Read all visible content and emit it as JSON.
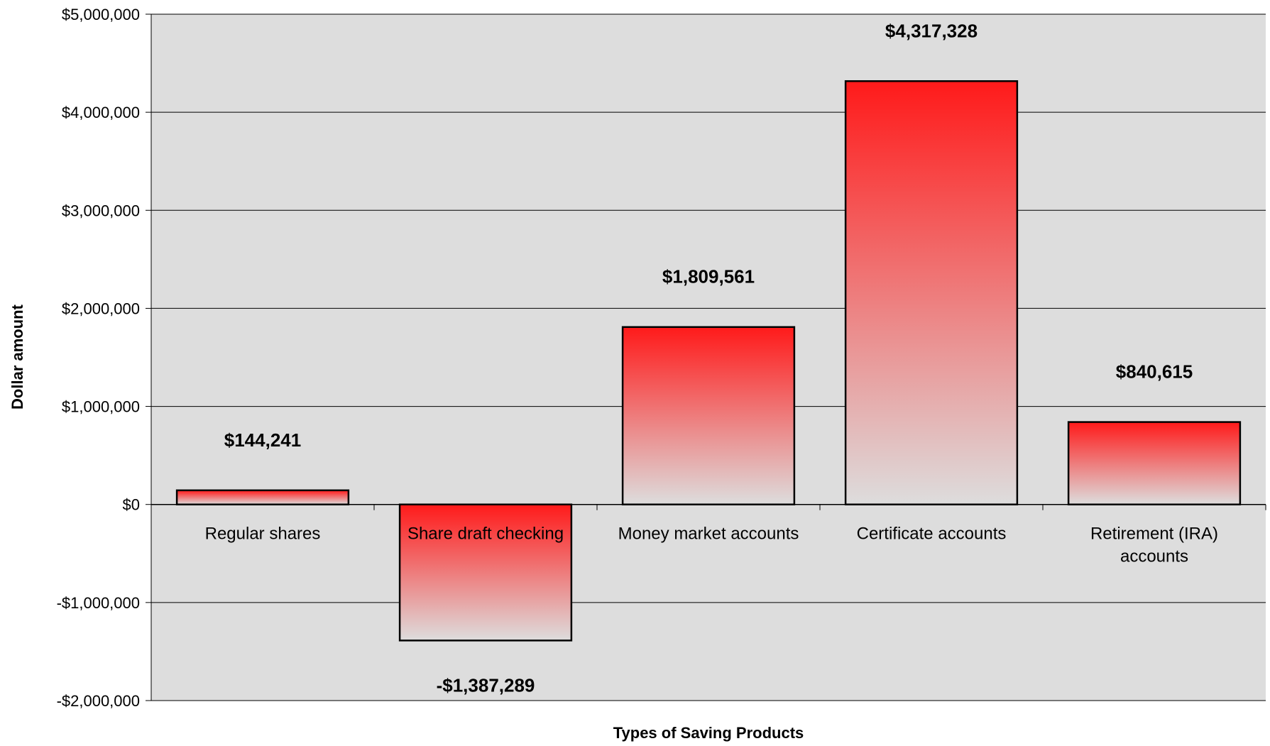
{
  "chart_data": {
    "type": "bar",
    "title": "",
    "xlabel": "Types of Saving Products",
    "ylabel": "Dollar amount",
    "categories": [
      "Regular shares",
      "Share draft checking",
      "Money market accounts",
      "Certificate accounts",
      "Retirement (IRA) accounts"
    ],
    "category_lines": [
      [
        "Regular shares"
      ],
      [
        "Share draft checking"
      ],
      [
        "Money market accounts"
      ],
      [
        "Certificate accounts"
      ],
      [
        "Retirement (IRA)",
        "accounts"
      ]
    ],
    "values": [
      144241,
      -1387289,
      1809561,
      4317328,
      840615
    ],
    "value_labels": [
      "$144,241",
      "-$1,387,289",
      "$1,809,561",
      "$4,317,328",
      "$840,615"
    ],
    "ylim": [
      -2000000,
      5000000
    ],
    "yticks": [
      -2000000,
      -1000000,
      0,
      1000000,
      2000000,
      3000000,
      4000000,
      5000000
    ],
    "ytick_labels": [
      "-$2,000,000",
      "-$1,000,000",
      "$0",
      "$1,000,000",
      "$2,000,000",
      "$3,000,000",
      "$4,000,000",
      "$5,000,000"
    ],
    "grid": true,
    "legend": "none",
    "colors": {
      "plot_background": "#dddddd",
      "bar_top": "#ff1a1a",
      "bar_bottom": "#dddddd",
      "bar_edge": "#000000",
      "gridline": "#000000"
    }
  }
}
